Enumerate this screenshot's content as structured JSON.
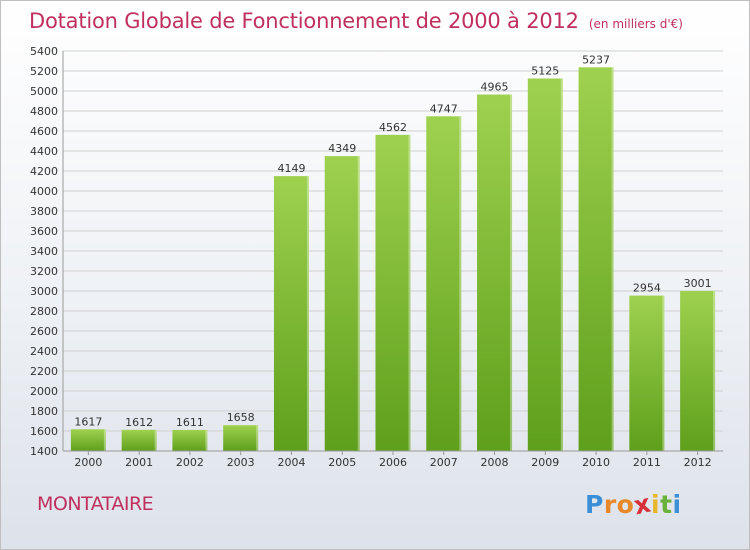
{
  "title": "Dotation Globale de Fonctionnement de 2000 à 2012",
  "unit": "(en milliers d'€)",
  "commune": "MONTATAIRE",
  "logo": {
    "letters": [
      {
        "ch": "P",
        "color": "#3b8fd6"
      },
      {
        "ch": "r",
        "color": "#e8882a"
      },
      {
        "ch": "o",
        "color": "#e8882a"
      },
      {
        "ch": "x",
        "color": "#d8303b"
      },
      {
        "ch": "i",
        "color": "#e8b62a"
      },
      {
        "ch": "t",
        "color": "#6bb23a"
      },
      {
        "ch": "i",
        "color": "#3b8fd6"
      }
    ]
  },
  "colors": {
    "bar_light": "#9ed14f",
    "bar_dark": "#5e9f1b",
    "title": "#c0305e"
  },
  "chart_data": {
    "type": "bar",
    "title": "Dotation Globale de Fonctionnement de 2000 à 2012",
    "subtitle": "(en milliers d'€)",
    "categories": [
      "2000",
      "2001",
      "2002",
      "2003",
      "2004",
      "2005",
      "2006",
      "2007",
      "2008",
      "2009",
      "2010",
      "2011",
      "2012"
    ],
    "values": [
      1617,
      1612,
      1611,
      1658,
      4149,
      4349,
      4562,
      4747,
      4965,
      5125,
      5237,
      2954,
      3001
    ],
    "data_labels": [
      "1617",
      "1612",
      "1611",
      "1658",
      "4149",
      "4349",
      "4562",
      "4747",
      "4965",
      "5125",
      "5237",
      "2954",
      "3001"
    ],
    "ylim": [
      1400,
      5400
    ],
    "yticks": [
      1400,
      1600,
      1800,
      2000,
      2200,
      2400,
      2600,
      2800,
      3000,
      3200,
      3400,
      3600,
      3800,
      4000,
      4200,
      4400,
      4600,
      4800,
      5000,
      5200,
      5400
    ],
    "grid": true,
    "xlabel": "",
    "ylabel": ""
  }
}
